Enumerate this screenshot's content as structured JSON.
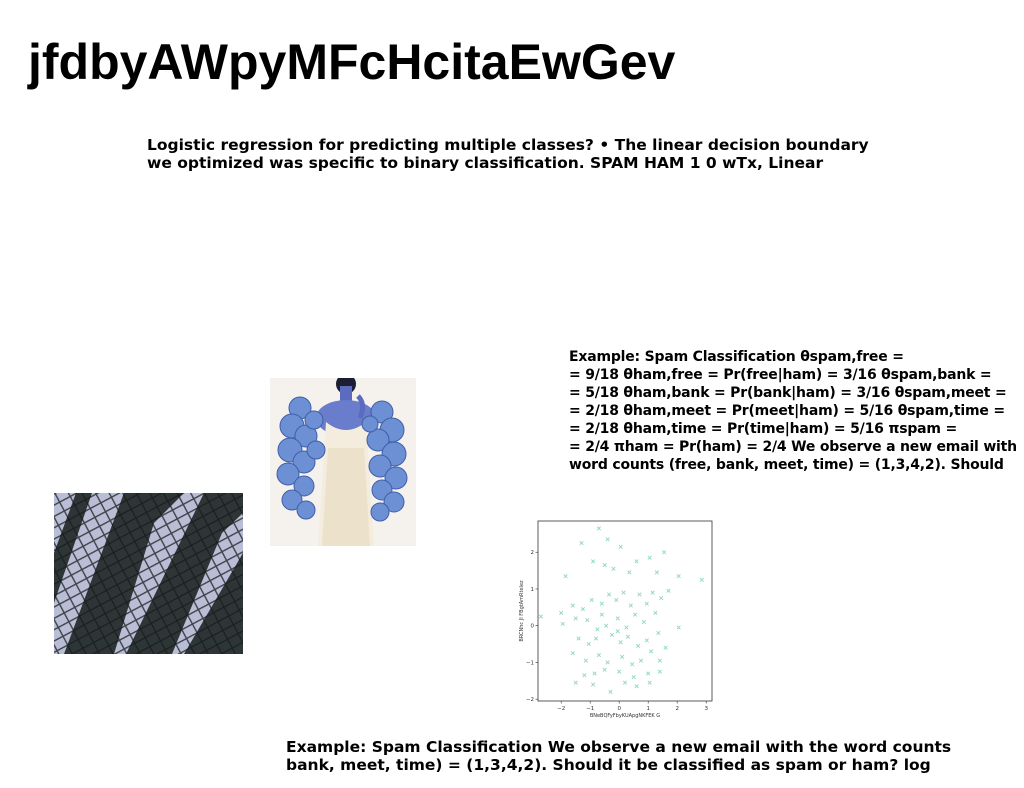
{
  "page": {
    "title": "jfdbyAWpyMFcHcitaEwGev"
  },
  "text_blocks": [
    {
      "lines": [
        "Logistic regression for predicting multiple classes? • The linear decision boundary",
        "we optimized was specific to binary classification. SPAM HAM 1 0 wTx, Linear"
      ]
    },
    {
      "lines": [
        "Example: Spam Classification θspam,free =",
        "= 9/18 θham,free = Pr(free|ham) = 3/16 θspam,bank =",
        "= 5/18 θham,bank = Pr(bank|ham) = 3/16 θspam,meet =",
        "= 2/18 θham,meet = Pr(meet|ham) = 5/16 θspam,time =",
        "= 2/18 θham,time = Pr(time|ham) = 5/16 πspam =",
        "= 2/4 πham = Pr(ham) = 2/4 We observe a new email with",
        "word counts (free, bank, meet, time) = (1,3,4,2). Should"
      ]
    },
    {
      "lines": [
        "Example: Spam Classification We observe a new email with the word counts",
        "bank, meet, time) = (1,3,4,2). Should it be classified as spam or ham? log"
      ]
    }
  ],
  "images": [
    {
      "subject": "building-facade-photo"
    },
    {
      "subject": "knitted-shawl-fashion-photo"
    }
  ],
  "chart_data": {
    "type": "scatter",
    "xlabel": "BNeBQFyFbyKUApgNKFEK G",
    "ylabel": "BRCNhc JI FBgtAmRtelez",
    "xlim": [
      -2.8,
      3.2
    ],
    "ylim": [
      -2.05,
      2.85
    ],
    "xticks": [
      -2,
      -1,
      0,
      1,
      2,
      3
    ],
    "yticks": [
      -2,
      -1,
      0,
      1,
      2
    ],
    "marker": "x",
    "marker_color": "#8fd6c4",
    "grid": false,
    "points": [
      [
        -0.7,
        2.65
      ],
      [
        -1.3,
        2.25
      ],
      [
        -0.4,
        2.35
      ],
      [
        0.05,
        2.15
      ],
      [
        1.55,
        2.0
      ],
      [
        2.05,
        1.35
      ],
      [
        2.85,
        1.25
      ],
      [
        -1.85,
        1.35
      ],
      [
        -0.9,
        1.75
      ],
      [
        -0.5,
        1.65
      ],
      [
        -0.2,
        1.55
      ],
      [
        0.35,
        1.45
      ],
      [
        0.6,
        1.75
      ],
      [
        1.05,
        1.85
      ],
      [
        1.3,
        1.45
      ],
      [
        -2.7,
        0.25
      ],
      [
        -2.0,
        0.35
      ],
      [
        -1.6,
        0.55
      ],
      [
        -1.25,
        0.45
      ],
      [
        -0.95,
        0.7
      ],
      [
        -0.6,
        0.6
      ],
      [
        -0.35,
        0.85
      ],
      [
        -0.1,
        0.7
      ],
      [
        0.15,
        0.9
      ],
      [
        0.4,
        0.55
      ],
      [
        0.7,
        0.85
      ],
      [
        0.95,
        0.6
      ],
      [
        1.15,
        0.9
      ],
      [
        1.45,
        0.75
      ],
      [
        1.7,
        0.95
      ],
      [
        -1.95,
        0.05
      ],
      [
        -1.5,
        0.2
      ],
      [
        -1.1,
        0.15
      ],
      [
        -0.75,
        -0.1
      ],
      [
        -0.45,
        0.0
      ],
      [
        -0.05,
        0.2
      ],
      [
        0.25,
        -0.05
      ],
      [
        0.55,
        0.3
      ],
      [
        0.85,
        0.1
      ],
      [
        1.25,
        0.35
      ],
      [
        2.05,
        -0.05
      ],
      [
        -1.4,
        -0.35
      ],
      [
        -1.05,
        -0.5
      ],
      [
        -0.8,
        -0.35
      ],
      [
        -0.25,
        -0.25
      ],
      [
        0.05,
        -0.45
      ],
      [
        0.3,
        -0.3
      ],
      [
        0.65,
        -0.55
      ],
      [
        0.95,
        -0.4
      ],
      [
        1.35,
        -0.2
      ],
      [
        -1.6,
        -0.75
      ],
      [
        -1.15,
        -0.95
      ],
      [
        -0.7,
        -0.8
      ],
      [
        -0.4,
        -1.0
      ],
      [
        0.1,
        -0.85
      ],
      [
        0.45,
        -1.05
      ],
      [
        0.75,
        -0.95
      ],
      [
        1.1,
        -0.7
      ],
      [
        1.4,
        -0.95
      ],
      [
        1.6,
        -0.6
      ],
      [
        -1.2,
        -1.35
      ],
      [
        -0.85,
        -1.3
      ],
      [
        -0.5,
        -1.2
      ],
      [
        0.0,
        -1.25
      ],
      [
        0.5,
        -1.4
      ],
      [
        1.0,
        -1.3
      ],
      [
        1.4,
        -1.25
      ],
      [
        -1.5,
        -1.55
      ],
      [
        -0.9,
        -1.6
      ],
      [
        -0.3,
        -1.8
      ],
      [
        0.2,
        -1.55
      ],
      [
        0.6,
        -1.65
      ],
      [
        1.05,
        -1.55
      ],
      [
        -0.05,
        -0.15
      ],
      [
        -0.6,
        0.3
      ]
    ]
  }
}
